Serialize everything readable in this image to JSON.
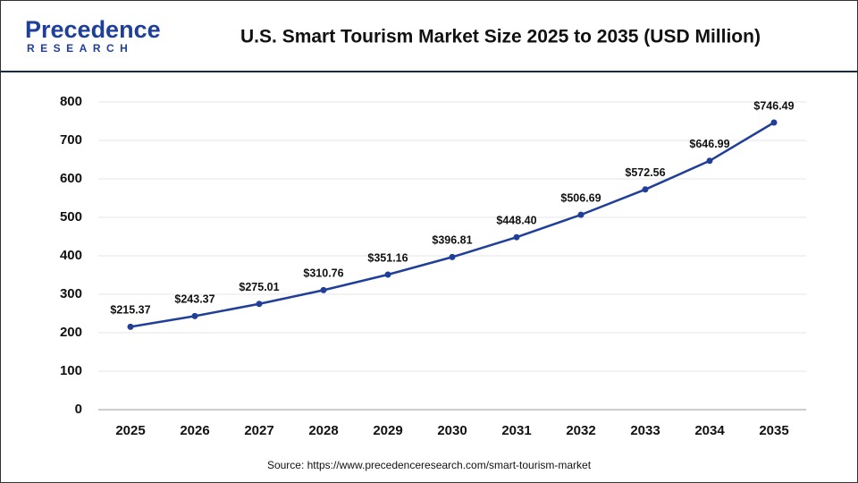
{
  "logo": {
    "name": "Precedence",
    "tagline": "RESEARCH"
  },
  "chart_data": {
    "type": "line",
    "title": "U.S. Smart Tourism Market Size 2025 to 2035 (USD Million)",
    "source": "Source: https://www.precedenceresearch.com/smart-tourism-market",
    "categories": [
      "2025",
      "2026",
      "2027",
      "2028",
      "2029",
      "2030",
      "2031",
      "2032",
      "2033",
      "2034",
      "2035"
    ],
    "values": [
      215.37,
      243.37,
      275.01,
      310.76,
      351.16,
      396.81,
      448.4,
      506.69,
      572.56,
      646.99,
      746.49
    ],
    "value_labels": [
      "$215.37",
      "$243.37",
      "$275.01",
      "$310.76",
      "$351.16",
      "$396.81",
      "$448.40",
      "$506.69",
      "$572.56",
      "$646.99",
      "$746.49"
    ],
    "color": "#1f3f98",
    "ylim": [
      0,
      800
    ],
    "yticks": [
      0,
      100,
      200,
      300,
      400,
      500,
      600,
      700,
      800
    ],
    "grid": true
  }
}
